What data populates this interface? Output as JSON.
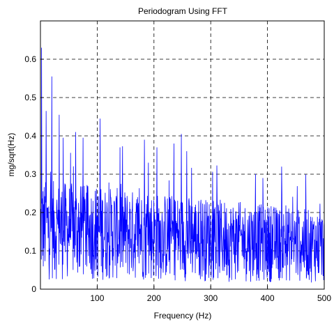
{
  "chart_data": {
    "type": "line",
    "title": "Periodogram Using FFT",
    "xlabel": "Frequency (Hz)",
    "ylabel": "mg/sqrt(Hz)",
    "xlim": [
      0,
      500
    ],
    "ylim": [
      0,
      0.7
    ],
    "xticks": [
      100,
      200,
      300,
      400,
      500
    ],
    "yticks": [
      0,
      0.1,
      0.2,
      0.3,
      0.4,
      0.5,
      0.6
    ],
    "xtick_labels": [
      "100",
      "200",
      "300",
      "400",
      "500"
    ],
    "ytick_labels": [
      "0",
      "0.1",
      "0.2",
      "0.3",
      "0.4",
      "0.5",
      "0.6"
    ],
    "grid": true,
    "line_color": "#0000ff",
    "peaks": [
      {
        "x": 2,
        "y": 0.63
      },
      {
        "x": 20,
        "y": 0.555
      },
      {
        "x": 10,
        "y": 0.465
      },
      {
        "x": 33,
        "y": 0.455
      },
      {
        "x": 105,
        "y": 0.445
      },
      {
        "x": 62,
        "y": 0.41
      },
      {
        "x": 248,
        "y": 0.405
      },
      {
        "x": 40,
        "y": 0.395
      },
      {
        "x": 75,
        "y": 0.395
      },
      {
        "x": 183,
        "y": 0.39
      },
      {
        "x": 235,
        "y": 0.38
      },
      {
        "x": 205,
        "y": 0.37
      },
      {
        "x": 140,
        "y": 0.37
      },
      {
        "x": 258,
        "y": 0.36
      },
      {
        "x": 190,
        "y": 0.33
      },
      {
        "x": 392,
        "y": 0.29
      }
    ],
    "noise": {
      "points": 1000,
      "base_mean_start": 0.155,
      "base_mean_end": 0.11,
      "min": 0.005
    }
  }
}
